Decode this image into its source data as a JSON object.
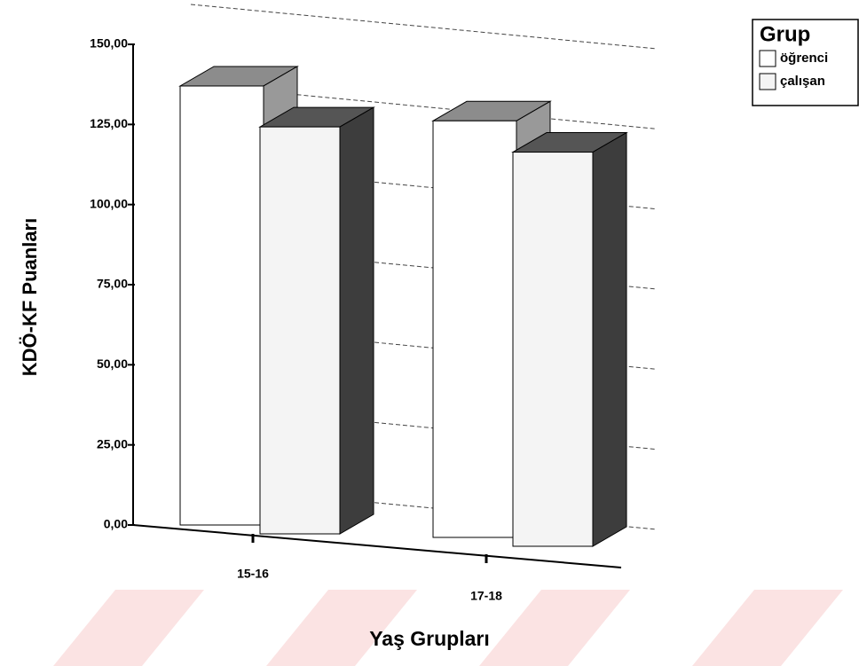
{
  "chart_data": {
    "type": "bar",
    "categories": [
      "15-16",
      "17-18"
    ],
    "series": [
      {
        "name": "öğrenci",
        "color": "#ffffff",
        "values": [
          137,
          130
        ]
      },
      {
        "name": "çalışan",
        "color": "#f4f4f4",
        "values": [
          127,
          123
        ]
      }
    ],
    "ylim": [
      0,
      150
    ],
    "yticks": [
      {
        "value": 0,
        "label": "0,00"
      },
      {
        "value": 25,
        "label": "25,00"
      },
      {
        "value": 50,
        "label": "50,00"
      },
      {
        "value": 75,
        "label": "75,00"
      },
      {
        "value": 100,
        "label": "100,00"
      },
      {
        "value": 125,
        "label": "125,00"
      },
      {
        "value": 150,
        "label": "150,00"
      }
    ],
    "y_label": "KDÖ-KF Puanları",
    "x_label": "Yaş Grupları",
    "legend_title": "Grup",
    "legend": "top-right",
    "grid": true
  }
}
